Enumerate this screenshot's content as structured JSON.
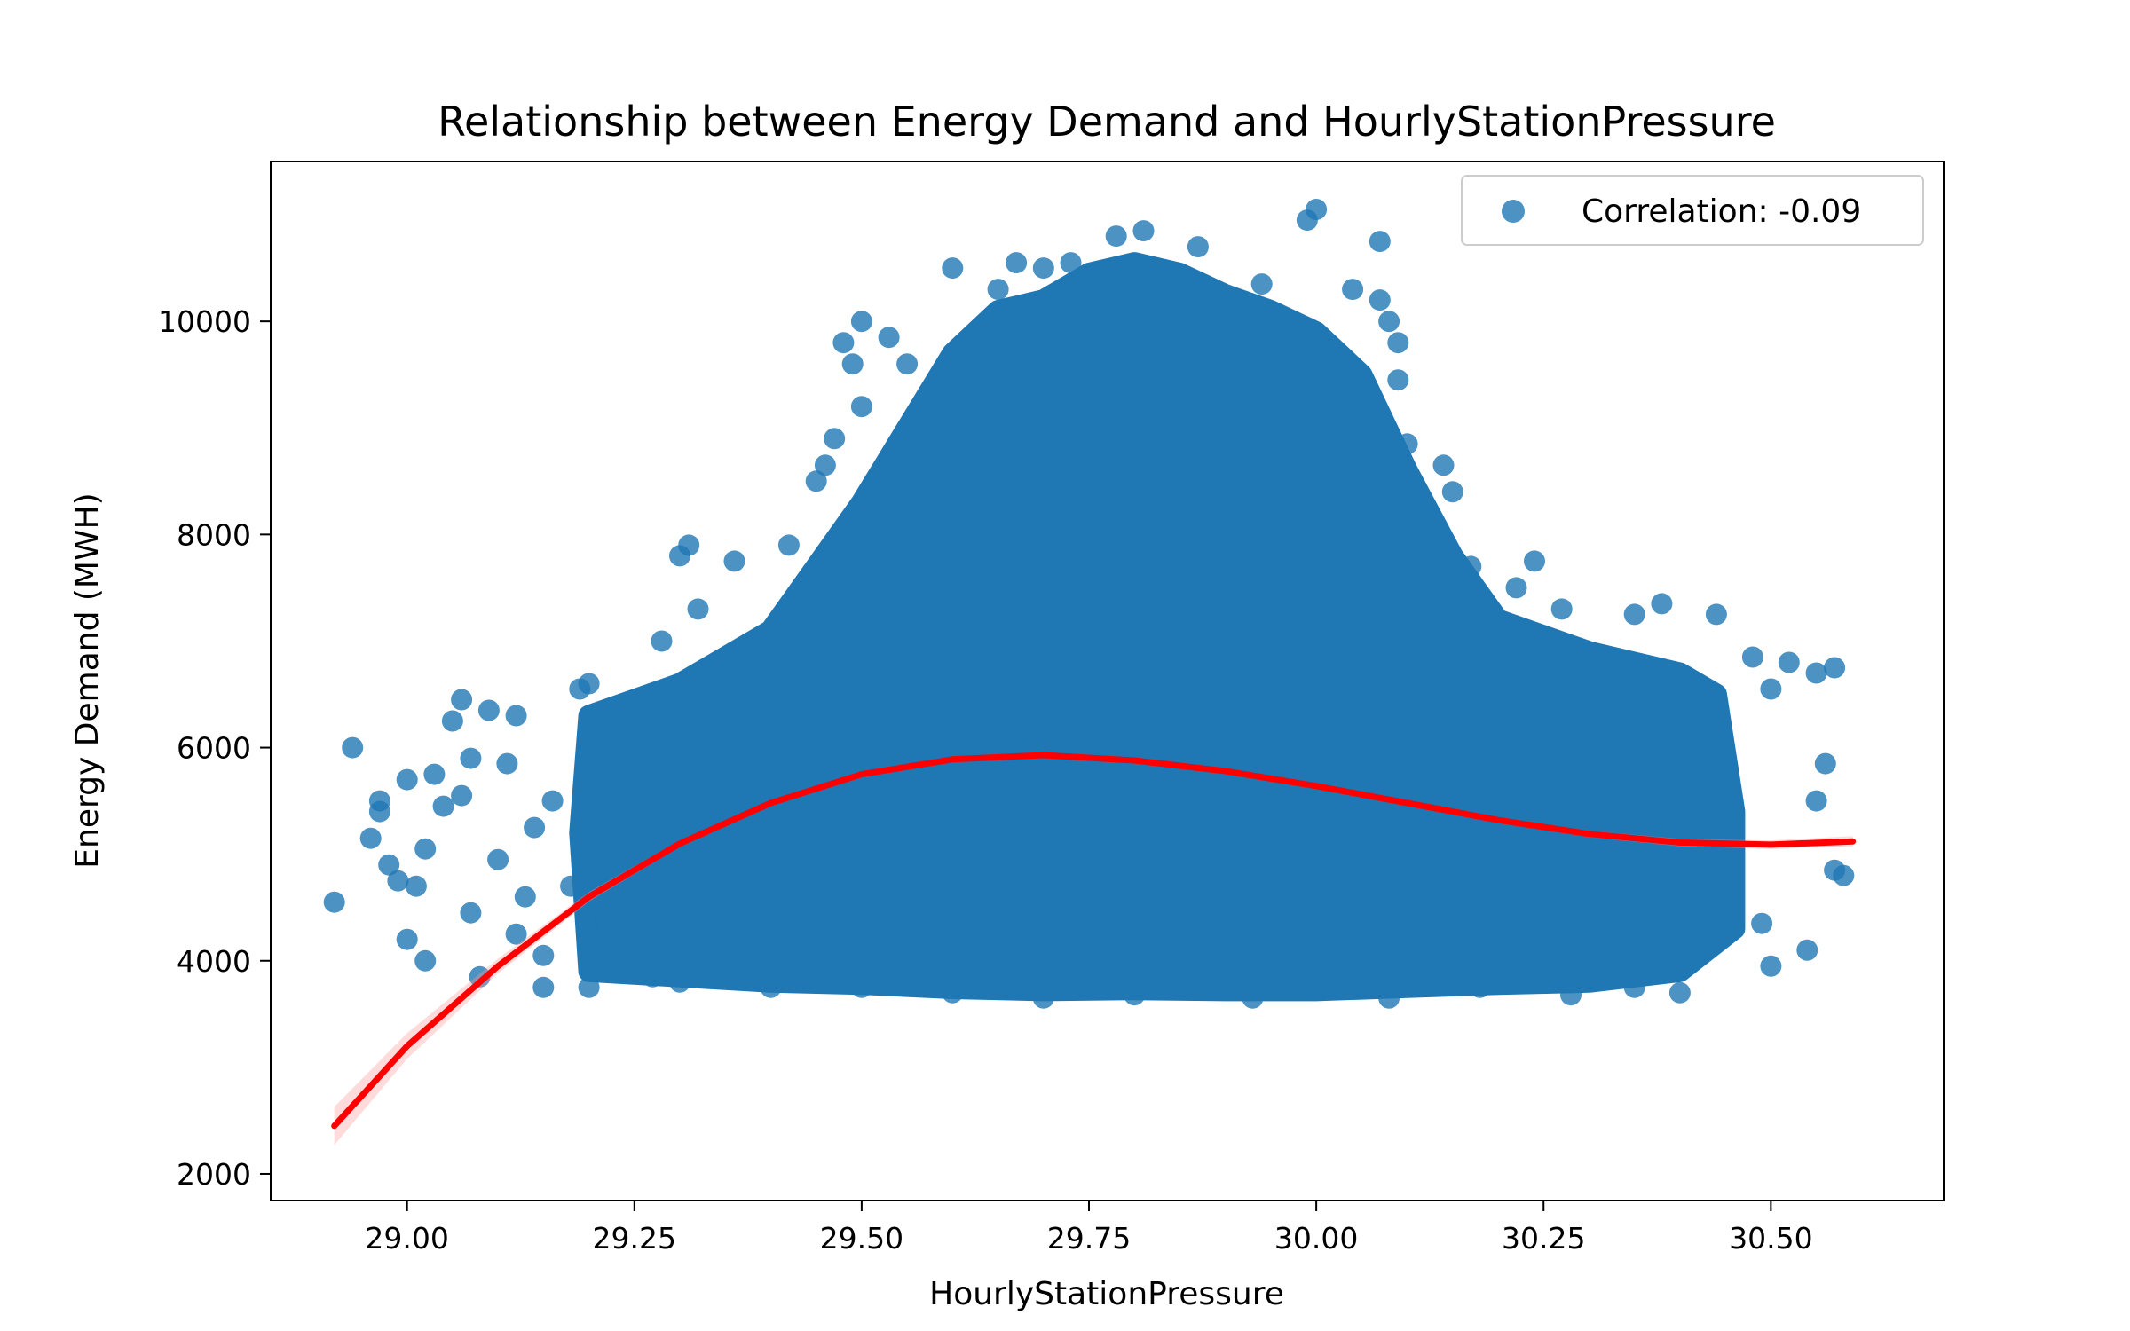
{
  "chart_data": {
    "type": "scatter",
    "title": "Relationship between Energy Demand and HourlyStationPressure",
    "xlabel": "HourlyStationPressure",
    "ylabel": "Energy Demand (MWH)",
    "xlim": [
      28.85,
      30.69
    ],
    "ylim": [
      1750,
      11500
    ],
    "x_ticks": [
      "29.00",
      "29.25",
      "29.50",
      "29.75",
      "30.00",
      "30.25",
      "30.50"
    ],
    "x_tick_values": [
      29.0,
      29.25,
      29.5,
      29.75,
      30.0,
      30.25,
      30.5
    ],
    "y_ticks": [
      "2000",
      "4000",
      "6000",
      "8000",
      "10000"
    ],
    "y_tick_values": [
      2000,
      4000,
      6000,
      8000,
      10000
    ],
    "legend": {
      "label": "Correlation: -0.09",
      "placement": "upper right"
    },
    "grid": false,
    "colors": {
      "points": "#1f77b4",
      "fit_line": "#ff0000",
      "ci_band": "#ff9999"
    },
    "series": [
      {
        "kind": "scatter",
        "points": [
          [
            28.92,
            4550
          ],
          [
            28.94,
            6000
          ],
          [
            28.96,
            5150
          ],
          [
            28.97,
            5500
          ],
          [
            28.97,
            5400
          ],
          [
            28.98,
            4900
          ],
          [
            28.99,
            4750
          ],
          [
            29.0,
            5700
          ],
          [
            29.0,
            4200
          ],
          [
            29.01,
            4700
          ],
          [
            29.02,
            4000
          ],
          [
            29.02,
            5050
          ],
          [
            29.03,
            5750
          ],
          [
            29.04,
            5450
          ],
          [
            29.05,
            6250
          ],
          [
            29.06,
            6450
          ],
          [
            29.06,
            5550
          ],
          [
            29.07,
            5900
          ],
          [
            29.07,
            4450
          ],
          [
            29.08,
            3850
          ],
          [
            29.09,
            6350
          ],
          [
            29.1,
            4950
          ],
          [
            29.11,
            5850
          ],
          [
            29.12,
            4250
          ],
          [
            29.12,
            6300
          ],
          [
            29.13,
            4600
          ],
          [
            29.14,
            5250
          ],
          [
            29.15,
            3750
          ],
          [
            29.15,
            4050
          ],
          [
            29.16,
            5500
          ],
          [
            29.18,
            4700
          ],
          [
            29.19,
            6550
          ],
          [
            29.2,
            3750
          ],
          [
            29.2,
            6600
          ],
          [
            29.22,
            4850
          ],
          [
            29.27,
            3850
          ],
          [
            29.28,
            7000
          ],
          [
            29.3,
            7800
          ],
          [
            29.31,
            7900
          ],
          [
            29.32,
            7300
          ],
          [
            29.36,
            7750
          ],
          [
            29.42,
            7900
          ],
          [
            29.45,
            8500
          ],
          [
            29.46,
            8650
          ],
          [
            29.47,
            8900
          ],
          [
            29.48,
            9800
          ],
          [
            29.49,
            9600
          ],
          [
            29.5,
            10000
          ],
          [
            29.5,
            9200
          ],
          [
            29.53,
            9850
          ],
          [
            29.55,
            9600
          ],
          [
            29.6,
            10500
          ],
          [
            29.65,
            10300
          ],
          [
            29.67,
            10550
          ],
          [
            29.7,
            10500
          ],
          [
            29.73,
            10550
          ],
          [
            29.78,
            10800
          ],
          [
            29.81,
            10850
          ],
          [
            29.87,
            10700
          ],
          [
            29.94,
            10350
          ],
          [
            29.99,
            10950
          ],
          [
            30.0,
            11050
          ],
          [
            30.04,
            10300
          ],
          [
            30.07,
            10750
          ],
          [
            30.07,
            10200
          ],
          [
            30.08,
            10000
          ],
          [
            30.09,
            9800
          ],
          [
            30.09,
            9450
          ],
          [
            30.1,
            8850
          ],
          [
            30.14,
            8650
          ],
          [
            30.15,
            8400
          ],
          [
            30.17,
            7700
          ],
          [
            30.22,
            7500
          ],
          [
            30.24,
            7750
          ],
          [
            30.27,
            7300
          ],
          [
            30.35,
            7250
          ],
          [
            30.38,
            7350
          ],
          [
            30.44,
            7250
          ],
          [
            30.48,
            6850
          ],
          [
            30.5,
            6550
          ],
          [
            30.52,
            6800
          ],
          [
            30.55,
            6700
          ],
          [
            30.57,
            6750
          ],
          [
            30.55,
            5500
          ],
          [
            30.56,
            5850
          ],
          [
            30.58,
            4800
          ],
          [
            30.57,
            4850
          ],
          [
            30.54,
            4100
          ],
          [
            30.5,
            3950
          ],
          [
            30.49,
            4350
          ],
          [
            30.4,
            3700
          ],
          [
            30.35,
            3750
          ],
          [
            30.28,
            3680
          ],
          [
            30.18,
            3750
          ],
          [
            30.08,
            3650
          ],
          [
            29.93,
            3650
          ],
          [
            29.8,
            3680
          ],
          [
            29.7,
            3650
          ],
          [
            29.6,
            3700
          ],
          [
            29.5,
            3750
          ],
          [
            29.4,
            3750
          ],
          [
            29.3,
            3800
          ]
        ]
      },
      {
        "kind": "polyfit-order-3",
        "name": "",
        "x": [
          28.92,
          29.0,
          29.1,
          29.2,
          29.3,
          29.4,
          29.5,
          29.6,
          29.7,
          29.8,
          29.9,
          30.0,
          30.1,
          30.2,
          30.3,
          30.4,
          30.5,
          30.59
        ],
        "y": [
          2450,
          3200,
          3950,
          4600,
          5100,
          5480,
          5750,
          5890,
          5930,
          5880,
          5780,
          5640,
          5480,
          5320,
          5190,
          5110,
          5090,
          5120
        ],
        "ci_halfwidth": [
          180,
          120,
          70,
          45,
          30,
          25,
          25,
          25,
          25,
          25,
          25,
          25,
          25,
          25,
          30,
          35,
          40,
          50
        ]
      }
    ]
  }
}
